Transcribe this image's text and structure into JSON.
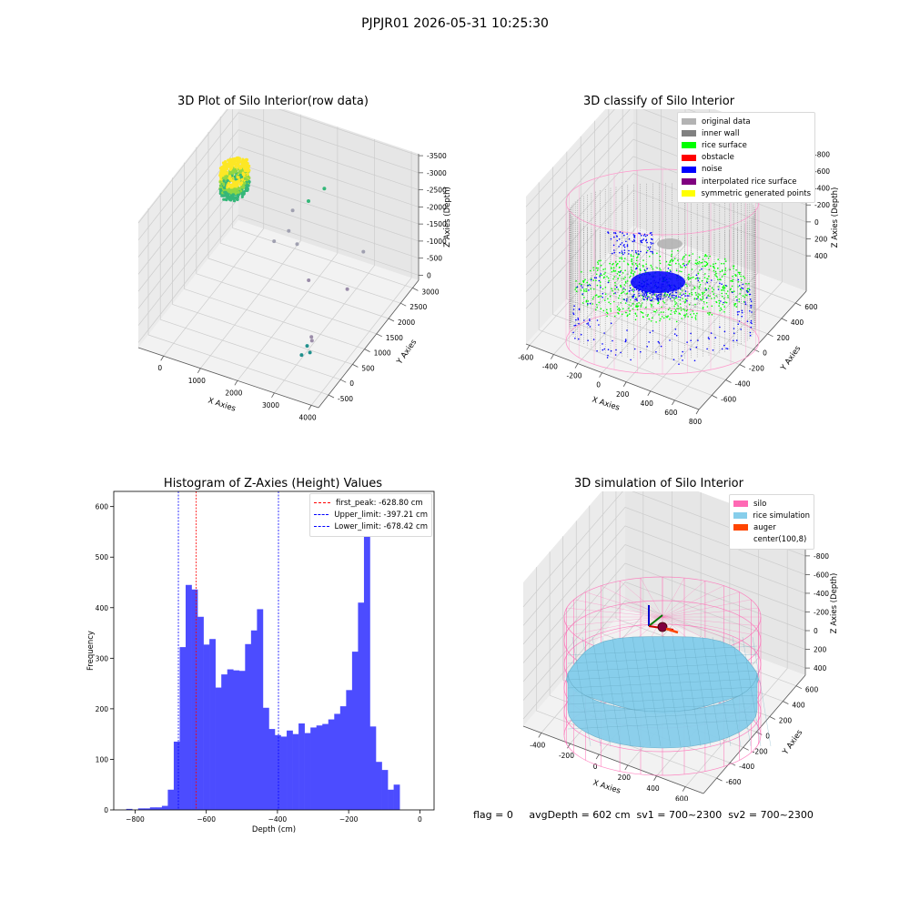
{
  "figure": {
    "title": "PJPJR01 2026-05-31 10:25:30",
    "footer": "flag = 0     avgDepth = 602 cm  sv1 = 700~2300  sv2 = 700~2300"
  },
  "chart_data": [
    {
      "id": "raw",
      "type": "scatter",
      "title": "3D Plot of Silo Interior(row data)",
      "xlabel": "X Axies",
      "ylabel": "Y Axies",
      "zlabel": "Z Axies (Depth)",
      "x_ticks": [
        "0",
        "1000",
        "2000",
        "3000",
        "4000"
      ],
      "y_ticks": [
        "-500",
        "0",
        "500",
        "1000",
        "1500",
        "2000",
        "2500",
        "3000"
      ],
      "z_ticks": [
        "0",
        "-500",
        "-1000",
        "-1500",
        "-2000",
        "-2500",
        "-3000",
        "-3500"
      ],
      "colormap": [
        "#440154",
        "#31688e",
        "#21908d",
        "#35b779",
        "#90d743",
        "#fde725"
      ],
      "cluster": {
        "x": [
          -300,
          350
        ],
        "y": [
          1900,
          2600
        ],
        "z": [
          -900,
          -1600
        ]
      },
      "outliers": [
        {
          "x": 2200,
          "y": 2700,
          "z": -1200
        },
        {
          "x": 1900,
          "y": 2500,
          "z": -1500
        },
        {
          "x": 1600,
          "y": 2300,
          "z": -1700
        },
        {
          "x": 1700,
          "y": 2000,
          "z": -2000
        },
        {
          "x": 2000,
          "y": 1900,
          "z": -2200
        },
        {
          "x": 1500,
          "y": 1700,
          "z": -2100
        },
        {
          "x": 2600,
          "y": 1500,
          "z": -2700
        },
        {
          "x": 3700,
          "y": 2100,
          "z": -2000
        },
        {
          "x": 3600,
          "y": 1600,
          "z": -2700
        },
        {
          "x": 3300,
          "y": 600,
          "z": -3300
        },
        {
          "x": 3350,
          "y": 550,
          "z": -3350
        },
        {
          "x": 3250,
          "y": 500,
          "z": -3500
        },
        {
          "x": 3400,
          "y": 400,
          "z": -3550
        },
        {
          "x": 3200,
          "y": 350,
          "z": -3650
        }
      ]
    },
    {
      "id": "classify",
      "type": "scatter",
      "title": "3D classify of Silo Interior",
      "xlabel": "X Axies",
      "ylabel": "Y Axies",
      "zlabel": "Z Axies (Depth)",
      "x_ticks": [
        "-600",
        "-400",
        "-200",
        "0",
        "200",
        "400",
        "600",
        "800"
      ],
      "y_ticks": [
        "-600",
        "-400",
        "-200",
        "0",
        "200",
        "400",
        "600"
      ],
      "z_ticks": [
        "400",
        "200",
        "0",
        "-200",
        "-400",
        "-600",
        "-800"
      ],
      "legend": [
        {
          "label": "original data",
          "color": "#b3b3b3"
        },
        {
          "label": "inner wall",
          "color": "#808080"
        },
        {
          "label": "rice surface",
          "color": "#00ff00"
        },
        {
          "label": "obstacle",
          "color": "#ff0000"
        },
        {
          "label": "noise",
          "color": "#0000ff"
        },
        {
          "label": "interpolated rice surface",
          "color": "#800080"
        },
        {
          "label": "symmetric generated points",
          "color": "#ffff00"
        }
      ],
      "silo_color": "#ff99cc"
    },
    {
      "id": "hist",
      "type": "bar",
      "title": "Histogram of Z-Axies (Height) Values",
      "xlabel": "Depth (cm)",
      "ylabel": "Frequency",
      "xlim": [
        -860,
        40
      ],
      "ylim": [
        0,
        630
      ],
      "x_ticks": [
        -800,
        -600,
        -400,
        -200,
        0
      ],
      "y_ticks": [
        0,
        100,
        200,
        300,
        400,
        500,
        600
      ],
      "bar_color": "#4c4cff",
      "bin_start": -825,
      "bin_width": 16.7,
      "values": [
        2,
        0,
        3,
        3,
        5,
        5,
        8,
        40,
        135,
        322,
        445,
        436,
        382,
        327,
        338,
        242,
        268,
        278,
        276,
        275,
        328,
        355,
        397,
        202,
        160,
        148,
        145,
        157,
        150,
        171,
        152,
        163,
        167,
        170,
        179,
        190,
        205,
        237,
        313,
        410,
        600,
        165,
        95,
        79,
        40,
        50
      ],
      "lines": [
        {
          "label": "first_peak: -628.80 cm",
          "value": -628.8,
          "color": "#ff0000"
        },
        {
          "label": "Upper_limit: -397.21 cm",
          "value": -397.21,
          "color": "#0000ff"
        },
        {
          "label": "Lower_limit: -678.42 cm",
          "value": -678.42,
          "color": "#0000ff"
        }
      ]
    },
    {
      "id": "sim",
      "type": "area",
      "title": "3D simulation of Silo Interior",
      "xlabel": "X Axies",
      "ylabel": "Y Axies",
      "zlabel": "Z Axies (Depth)",
      "x_ticks": [
        "-400",
        "-200",
        "0",
        "200",
        "400",
        "600"
      ],
      "y_ticks": [
        "-600",
        "-400",
        "-200",
        "0",
        "200",
        "400",
        "600"
      ],
      "z_ticks": [
        "400",
        "200",
        "0",
        "-200",
        "-400",
        "-600",
        "-800"
      ],
      "legend": [
        {
          "label": "silo",
          "color": "#ff69b4"
        },
        {
          "label": "rice simulation",
          "color": "#87ceeb"
        },
        {
          "label": "auger",
          "color": "#ff4500"
        },
        {
          "label": "center(100,8)",
          "color": ""
        }
      ],
      "surface_depth": -602
    }
  ]
}
